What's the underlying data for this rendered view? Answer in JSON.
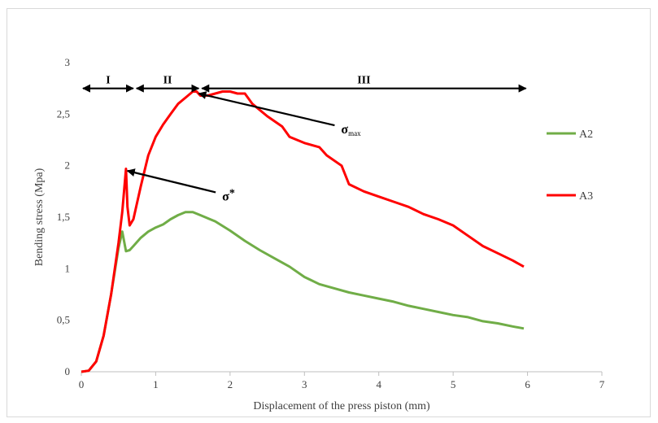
{
  "chart_data": {
    "type": "line",
    "xlabel": "Displacement of the press piston (mm)",
    "ylabel": "Bending stress (Mpa)",
    "xlim": [
      0,
      7
    ],
    "ylim": [
      0,
      3
    ],
    "x_ticks": [
      "0",
      "1",
      "2",
      "3",
      "4",
      "5",
      "6",
      "7"
    ],
    "y_ticks": [
      "0",
      "0,5",
      "1",
      "1,5",
      "2",
      "2,5",
      "3"
    ],
    "grid": false,
    "legend_position": "right",
    "series": [
      {
        "name": "A2",
        "color": "#70ad47",
        "x": [
          0,
          0.1,
          0.2,
          0.3,
          0.4,
          0.5,
          0.55,
          0.6,
          0.65,
          0.7,
          0.8,
          0.9,
          1.0,
          1.1,
          1.2,
          1.3,
          1.4,
          1.5,
          1.6,
          1.8,
          2.0,
          2.2,
          2.4,
          2.6,
          2.8,
          3.0,
          3.2,
          3.4,
          3.6,
          3.8,
          4.0,
          4.2,
          4.4,
          4.6,
          4.8,
          5.0,
          5.2,
          5.4,
          5.6,
          5.8,
          5.95
        ],
        "y": [
          0,
          0.01,
          0.1,
          0.35,
          0.75,
          1.2,
          1.36,
          1.17,
          1.18,
          1.22,
          1.3,
          1.36,
          1.4,
          1.43,
          1.48,
          1.52,
          1.55,
          1.55,
          1.52,
          1.46,
          1.37,
          1.27,
          1.18,
          1.1,
          1.02,
          0.92,
          0.85,
          0.81,
          0.77,
          0.74,
          0.71,
          0.68,
          0.64,
          0.61,
          0.58,
          0.55,
          0.53,
          0.49,
          0.47,
          0.44,
          0.42
        ]
      },
      {
        "name": "A3",
        "color": "#ff0000",
        "x": [
          0,
          0.1,
          0.2,
          0.3,
          0.4,
          0.5,
          0.55,
          0.6,
          0.62,
          0.65,
          0.7,
          0.8,
          0.9,
          1.0,
          1.1,
          1.2,
          1.3,
          1.4,
          1.5,
          1.55,
          1.6,
          1.7,
          1.8,
          1.9,
          2.0,
          2.1,
          2.2,
          2.3,
          2.5,
          2.7,
          2.8,
          3.0,
          3.2,
          3.3,
          3.5,
          3.6,
          3.8,
          4.0,
          4.2,
          4.4,
          4.6,
          4.8,
          5.0,
          5.2,
          5.4,
          5.6,
          5.8,
          5.95
        ],
        "y": [
          0,
          0.01,
          0.1,
          0.35,
          0.75,
          1.25,
          1.55,
          1.97,
          1.6,
          1.42,
          1.48,
          1.8,
          2.1,
          2.28,
          2.4,
          2.5,
          2.6,
          2.66,
          2.72,
          2.72,
          2.68,
          2.68,
          2.7,
          2.72,
          2.72,
          2.7,
          2.7,
          2.6,
          2.48,
          2.38,
          2.28,
          2.22,
          2.18,
          2.1,
          2.0,
          1.82,
          1.75,
          1.7,
          1.65,
          1.6,
          1.53,
          1.48,
          1.42,
          1.32,
          1.22,
          1.15,
          1.08,
          1.02
        ]
      }
    ],
    "regions": [
      {
        "label": "I",
        "x_start": 0,
        "x_end": 0.72,
        "y": 2.75
      },
      {
        "label": "II",
        "x_start": 0.72,
        "x_end": 1.6,
        "y": 2.75
      },
      {
        "label": "III",
        "x_start": 1.6,
        "x_end": 6.0,
        "y": 2.75
      }
    ],
    "annotations": [
      {
        "symbol": "σ",
        "sub": "max",
        "sup": "",
        "point_x": 1.58,
        "point_y": 2.7,
        "text_x": 3.45,
        "text_y": 2.36
      },
      {
        "symbol": "σ",
        "sub": "",
        "sup": "*",
        "point_x": 0.62,
        "point_y": 1.95,
        "text_x": 1.85,
        "text_y": 1.71
      }
    ]
  }
}
